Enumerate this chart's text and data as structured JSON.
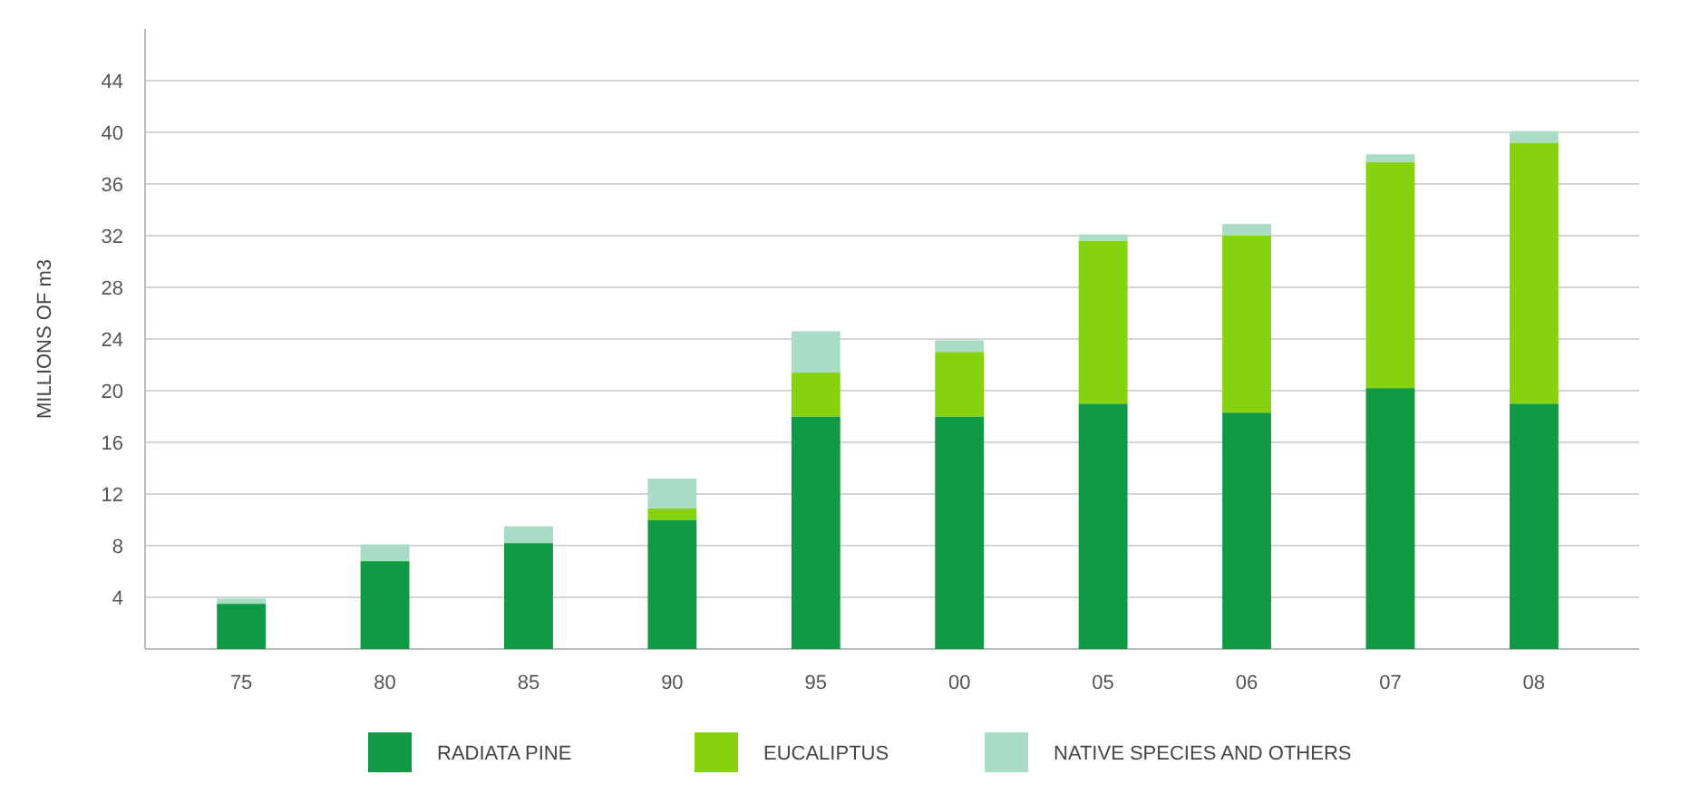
{
  "chart_data": {
    "type": "bar",
    "stacked": true,
    "ylabel": "MILLIONS OF m3",
    "categories": [
      "75",
      "80",
      "85",
      "90",
      "95",
      "00",
      "05",
      "06",
      "07",
      "08"
    ],
    "series": [
      {
        "name": "RADIATA PINE",
        "color": "#0f9a43",
        "values": [
          3.5,
          6.8,
          8.2,
          10,
          18,
          18,
          19,
          18.3,
          20.2,
          19
        ]
      },
      {
        "name": "EUCALIPTUS",
        "color": "#86d20f",
        "values": [
          0,
          0,
          0,
          0.9,
          3.4,
          5,
          12.6,
          13.7,
          17.5,
          20.2
        ]
      },
      {
        "name": "NATIVE SPECIES AND OTHERS",
        "color": "#a8dcc4",
        "values": [
          0.4,
          1.3,
          1.3,
          2.3,
          3.2,
          0.9,
          0.5,
          0.9,
          0.6,
          0.9
        ]
      }
    ],
    "ylim": [
      0,
      48
    ],
    "yticks": [
      4,
      8,
      12,
      16,
      20,
      24,
      28,
      32,
      36,
      40,
      44
    ],
    "grid": "y",
    "legend": "bottom"
  }
}
